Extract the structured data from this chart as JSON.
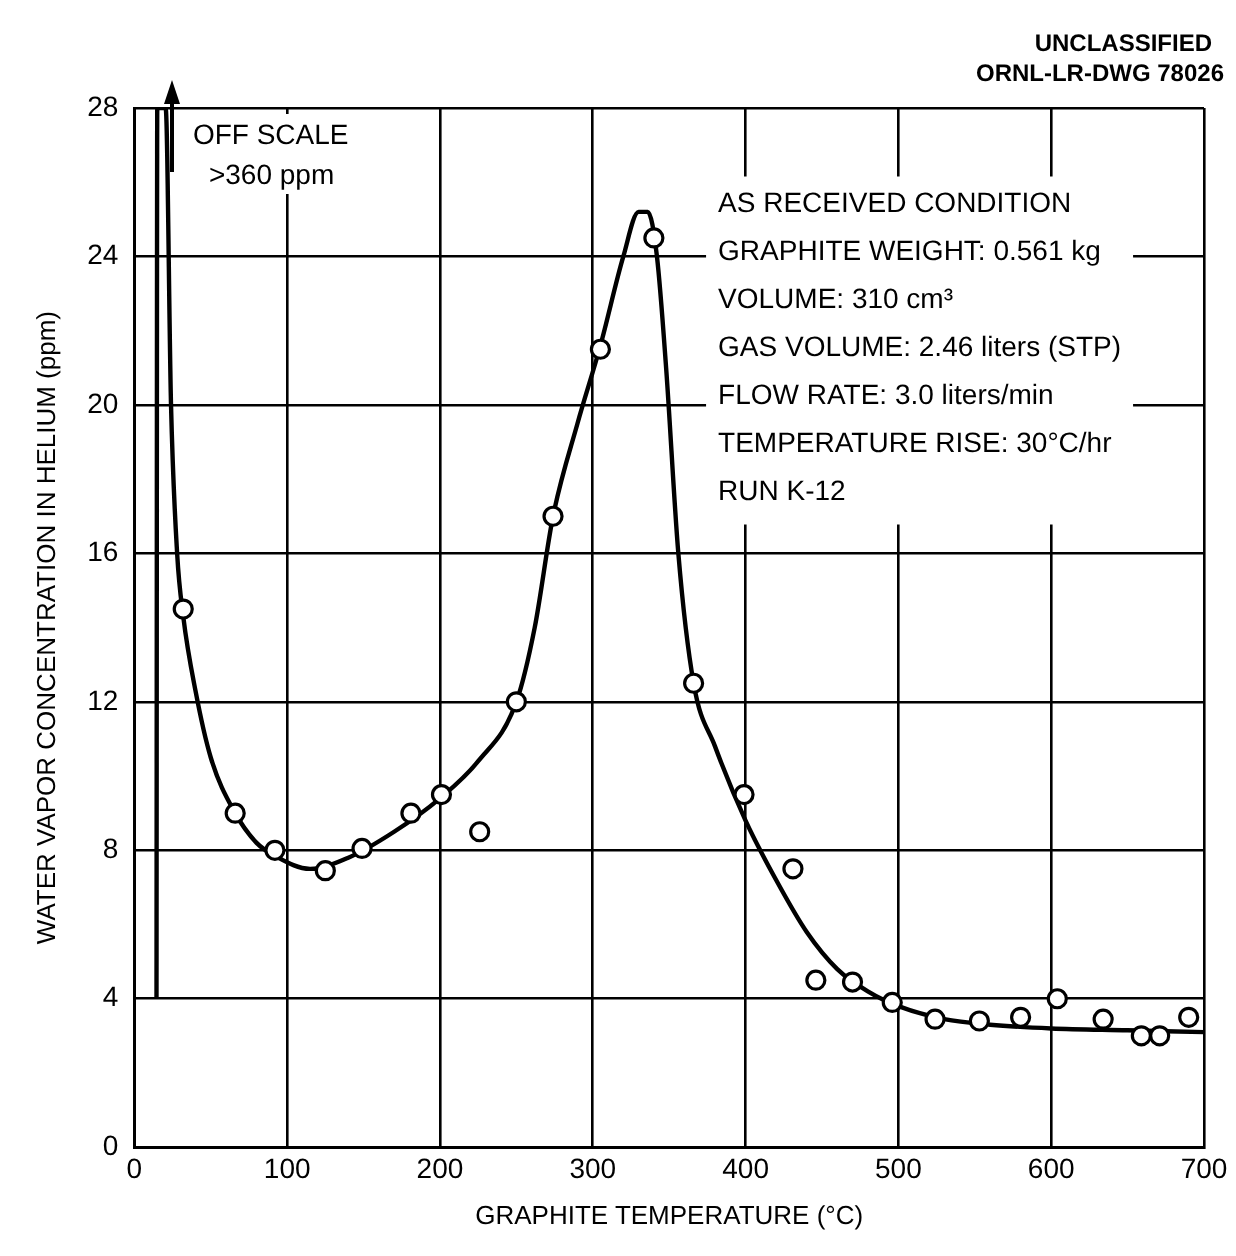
{
  "chart_data": {
    "type": "scatter",
    "xlabel": "GRAPHITE TEMPERATURE (°C)",
    "ylabel": "WATER VAPOR CONCENTRATION IN HELIUM (ppm)",
    "annotations": [
      "UNCLASSIFIED",
      "ORNL-LR-DWG 78026",
      "OFF SCALE >360 ppm",
      "AS RECEIVED CONDITION",
      "GRAPHITE WEIGHT: 0.561 kg",
      "VOLUME: 310 cm³",
      "GAS VOLUME: 2.46 liters (STP)",
      "FLOW RATE: 3.0 liters/min",
      "TEMPERATURE RISE: 30°C/hr",
      "RUN K-12"
    ],
    "xlim": [
      0,
      700
    ],
    "xticks": [
      0,
      100,
      200,
      300,
      400,
      500,
      600,
      700
    ],
    "ylim": [
      0,
      28
    ],
    "yticks": [
      0,
      4,
      8,
      12,
      16,
      20,
      24,
      28
    ],
    "grid": true,
    "series": [
      {
        "color": "#000000",
        "marker": "circle",
        "x": [
          32,
          66,
          92,
          125,
          149,
          181,
          201,
          226,
          250,
          274,
          305,
          340,
          366,
          399,
          431,
          446,
          470,
          496,
          524,
          553,
          580,
          604,
          634,
          659,
          671,
          690
        ],
        "values": [
          14.5,
          9.0,
          8.0,
          7.45,
          8.05,
          9.0,
          9.5,
          8.5,
          12.0,
          17.0,
          21.5,
          24.5,
          12.5,
          9.5,
          7.5,
          4.5,
          4.45,
          3.9,
          3.45,
          3.4,
          3.5,
          4.0,
          3.45,
          3.0,
          3.0,
          3.5
        ]
      },
      {
        "type": "line",
        "color": "#000000",
        "marker": "none",
        "x": [
          14.5,
          15,
          20.5,
          24,
          28,
          32,
          40,
          50,
          66,
          80,
          92,
          115,
          140,
          170,
          200,
          225,
          250,
          262,
          274,
          290,
          305,
          320,
          330,
          336,
          342,
          348,
          356,
          366,
          380,
          400,
          420,
          440,
          460,
          480,
          500,
          530,
          560,
          600,
          650,
          700
        ],
        "values": [
          4,
          28,
          28,
          20,
          16,
          14.3,
          12.3,
          10.5,
          9.0,
          8.2,
          7.85,
          7.5,
          7.8,
          8.5,
          9.4,
          10.4,
          12,
          14,
          17,
          19.5,
          21.6,
          24,
          25.2,
          25.2,
          24,
          21,
          16,
          12.5,
          10.8,
          8.8,
          7.2,
          5.8,
          4.8,
          4.2,
          3.8,
          3.45,
          3.3,
          3.2,
          3.15,
          3.1
        ]
      }
    ]
  }
}
